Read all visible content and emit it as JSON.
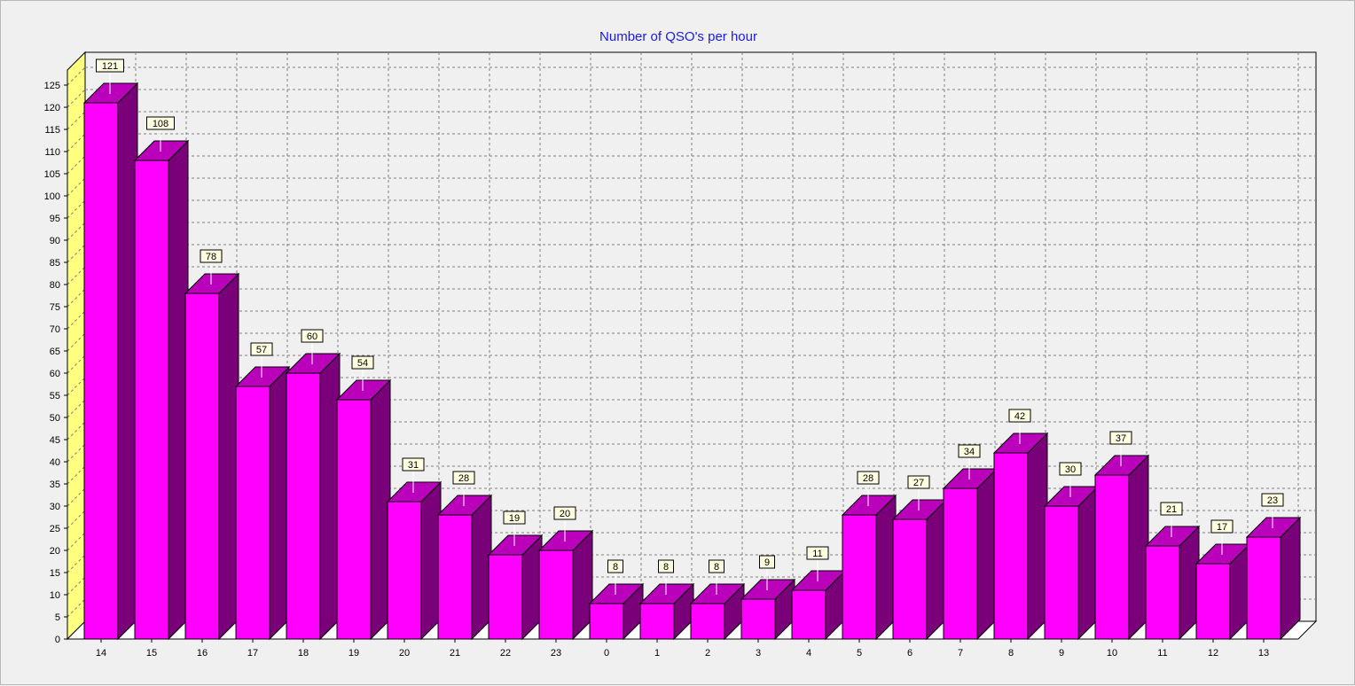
{
  "chart_data": {
    "type": "bar",
    "title": "Number of QSO's per hour",
    "xlabel": "",
    "ylabel": "",
    "categories": [
      "14",
      "15",
      "16",
      "17",
      "18",
      "19",
      "20",
      "21",
      "22",
      "23",
      "0",
      "1",
      "2",
      "3",
      "4",
      "5",
      "6",
      "7",
      "8",
      "9",
      "10",
      "11",
      "12",
      "13"
    ],
    "values": [
      121,
      108,
      78,
      57,
      60,
      54,
      31,
      28,
      19,
      20,
      8,
      8,
      8,
      9,
      11,
      28,
      27,
      34,
      42,
      30,
      37,
      21,
      17,
      23
    ],
    "ylim": [
      0,
      125
    ],
    "yticks": [
      0,
      5,
      10,
      15,
      20,
      25,
      30,
      35,
      40,
      45,
      50,
      55,
      60,
      65,
      70,
      75,
      80,
      85,
      90,
      95,
      100,
      105,
      110,
      115,
      120,
      125
    ],
    "grid": true,
    "style_3d": true,
    "colors": {
      "bar_front": "#ff00ff",
      "bar_top": "#bb00bb",
      "bar_side": "#7a007a",
      "left_wall": "#ffff80",
      "label_bg": "#ffffe1",
      "title": "#1a1aee"
    }
  }
}
